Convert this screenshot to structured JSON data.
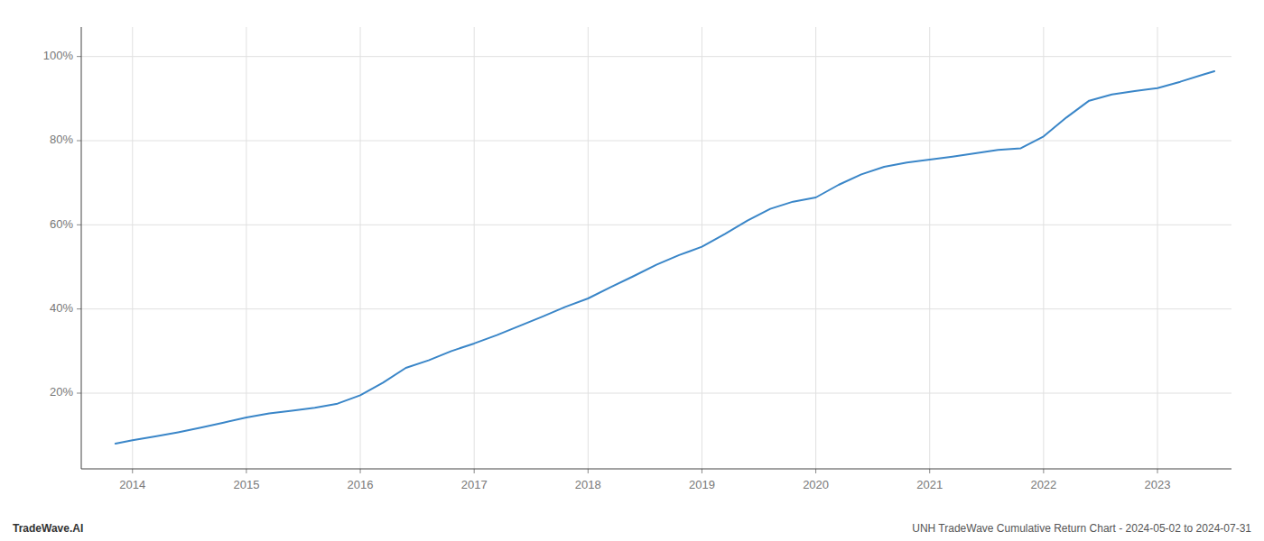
{
  "chart_data": {
    "type": "line",
    "x": [
      2013.85,
      2014.0,
      2014.2,
      2014.4,
      2014.6,
      2014.8,
      2015.0,
      2015.2,
      2015.4,
      2015.6,
      2015.8,
      2016.0,
      2016.2,
      2016.4,
      2016.6,
      2016.8,
      2017.0,
      2017.2,
      2017.4,
      2017.6,
      2017.8,
      2018.0,
      2018.2,
      2018.4,
      2018.6,
      2018.8,
      2019.0,
      2019.2,
      2019.4,
      2019.6,
      2019.8,
      2020.0,
      2020.2,
      2020.4,
      2020.6,
      2020.8,
      2021.0,
      2021.2,
      2021.4,
      2021.6,
      2021.8,
      2022.0,
      2022.2,
      2022.4,
      2022.6,
      2022.8,
      2023.0,
      2023.2,
      2023.4,
      2023.5
    ],
    "values": [
      0.08,
      0.088,
      0.097,
      0.107,
      0.118,
      0.13,
      0.142,
      0.152,
      0.158,
      0.165,
      0.175,
      0.195,
      0.225,
      0.26,
      0.278,
      0.3,
      0.318,
      0.338,
      0.36,
      0.382,
      0.405,
      0.425,
      0.452,
      0.478,
      0.505,
      0.528,
      0.548,
      0.578,
      0.61,
      0.638,
      0.655,
      0.665,
      0.695,
      0.72,
      0.738,
      0.748,
      0.755,
      0.762,
      0.77,
      0.778,
      0.782,
      0.81,
      0.855,
      0.895,
      0.91,
      0.918,
      0.925,
      0.94,
      0.957,
      0.965
    ],
    "color": "#3a86c8",
    "xlim": [
      2013.55,
      2023.65
    ],
    "xticks": [
      2014,
      2015,
      2016,
      2017,
      2018,
      2019,
      2020,
      2021,
      2022,
      2023
    ],
    "ylim": [
      0.02,
      1.07
    ],
    "yticks": [
      {
        "value": 0.2,
        "label": "20%"
      },
      {
        "value": 0.4,
        "label": "40%"
      },
      {
        "value": 0.6,
        "label": "60%"
      },
      {
        "value": 0.8,
        "label": "80%"
      },
      {
        "value": 1.0,
        "label": "100%"
      }
    ],
    "grid": true,
    "annotations": [
      "TradeWave.AI",
      "UNH TradeWave Cumulative Return Chart - 2024-05-02 to 2024-07-31"
    ]
  }
}
